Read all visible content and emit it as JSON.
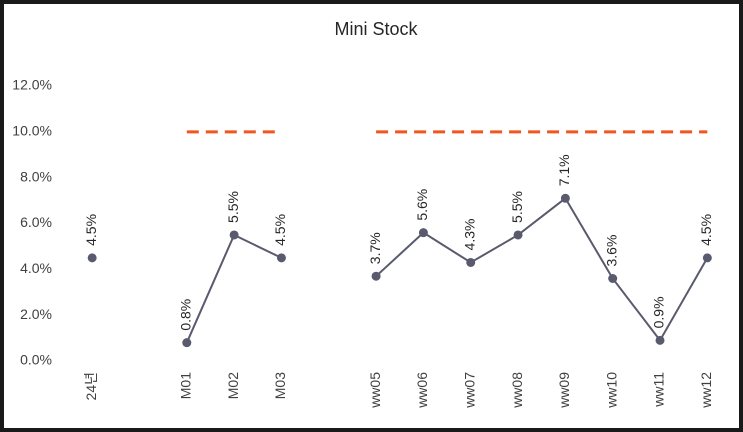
{
  "chart_data": {
    "type": "line",
    "title": "Mini Stock",
    "categories": [
      "24년",
      null,
      "M01",
      "M02",
      "M03",
      null,
      "ww05",
      "ww06",
      "ww07",
      "ww08",
      "ww09",
      "ww10",
      "ww11",
      "ww12"
    ],
    "series": [
      {
        "color": "#595a6e",
        "markers": true,
        "values": [
          4.5,
          null,
          0.8,
          5.5,
          4.5,
          null,
          3.7,
          5.6,
          4.3,
          5.5,
          7.1,
          3.6,
          0.9,
          4.5
        ],
        "value_labels": [
          "4.5%",
          null,
          "0.8%",
          "5.5%",
          "4.5%",
          null,
          "3.7%",
          "5.6%",
          "4.3%",
          "5.5%",
          "7.1%",
          "3.6%",
          "0.9%",
          "4.5%"
        ]
      },
      {
        "color": "#f0561e",
        "dashed": true,
        "markers": false,
        "values": [
          null,
          null,
          10,
          10,
          10,
          null,
          10,
          10,
          10,
          10,
          10,
          10,
          10,
          10
        ]
      }
    ],
    "ylim": [
      0,
      12
    ],
    "yticks": [
      {
        "value": 0,
        "label": "0.0%"
      },
      {
        "value": 2,
        "label": "2.0%"
      },
      {
        "value": 4,
        "label": "4.0%"
      },
      {
        "value": 6,
        "label": "6.0%"
      },
      {
        "value": 8,
        "label": "8.0%"
      },
      {
        "value": 10,
        "label": "10.0%"
      },
      {
        "value": 12,
        "label": "12.0%"
      }
    ],
    "grid": false
  }
}
